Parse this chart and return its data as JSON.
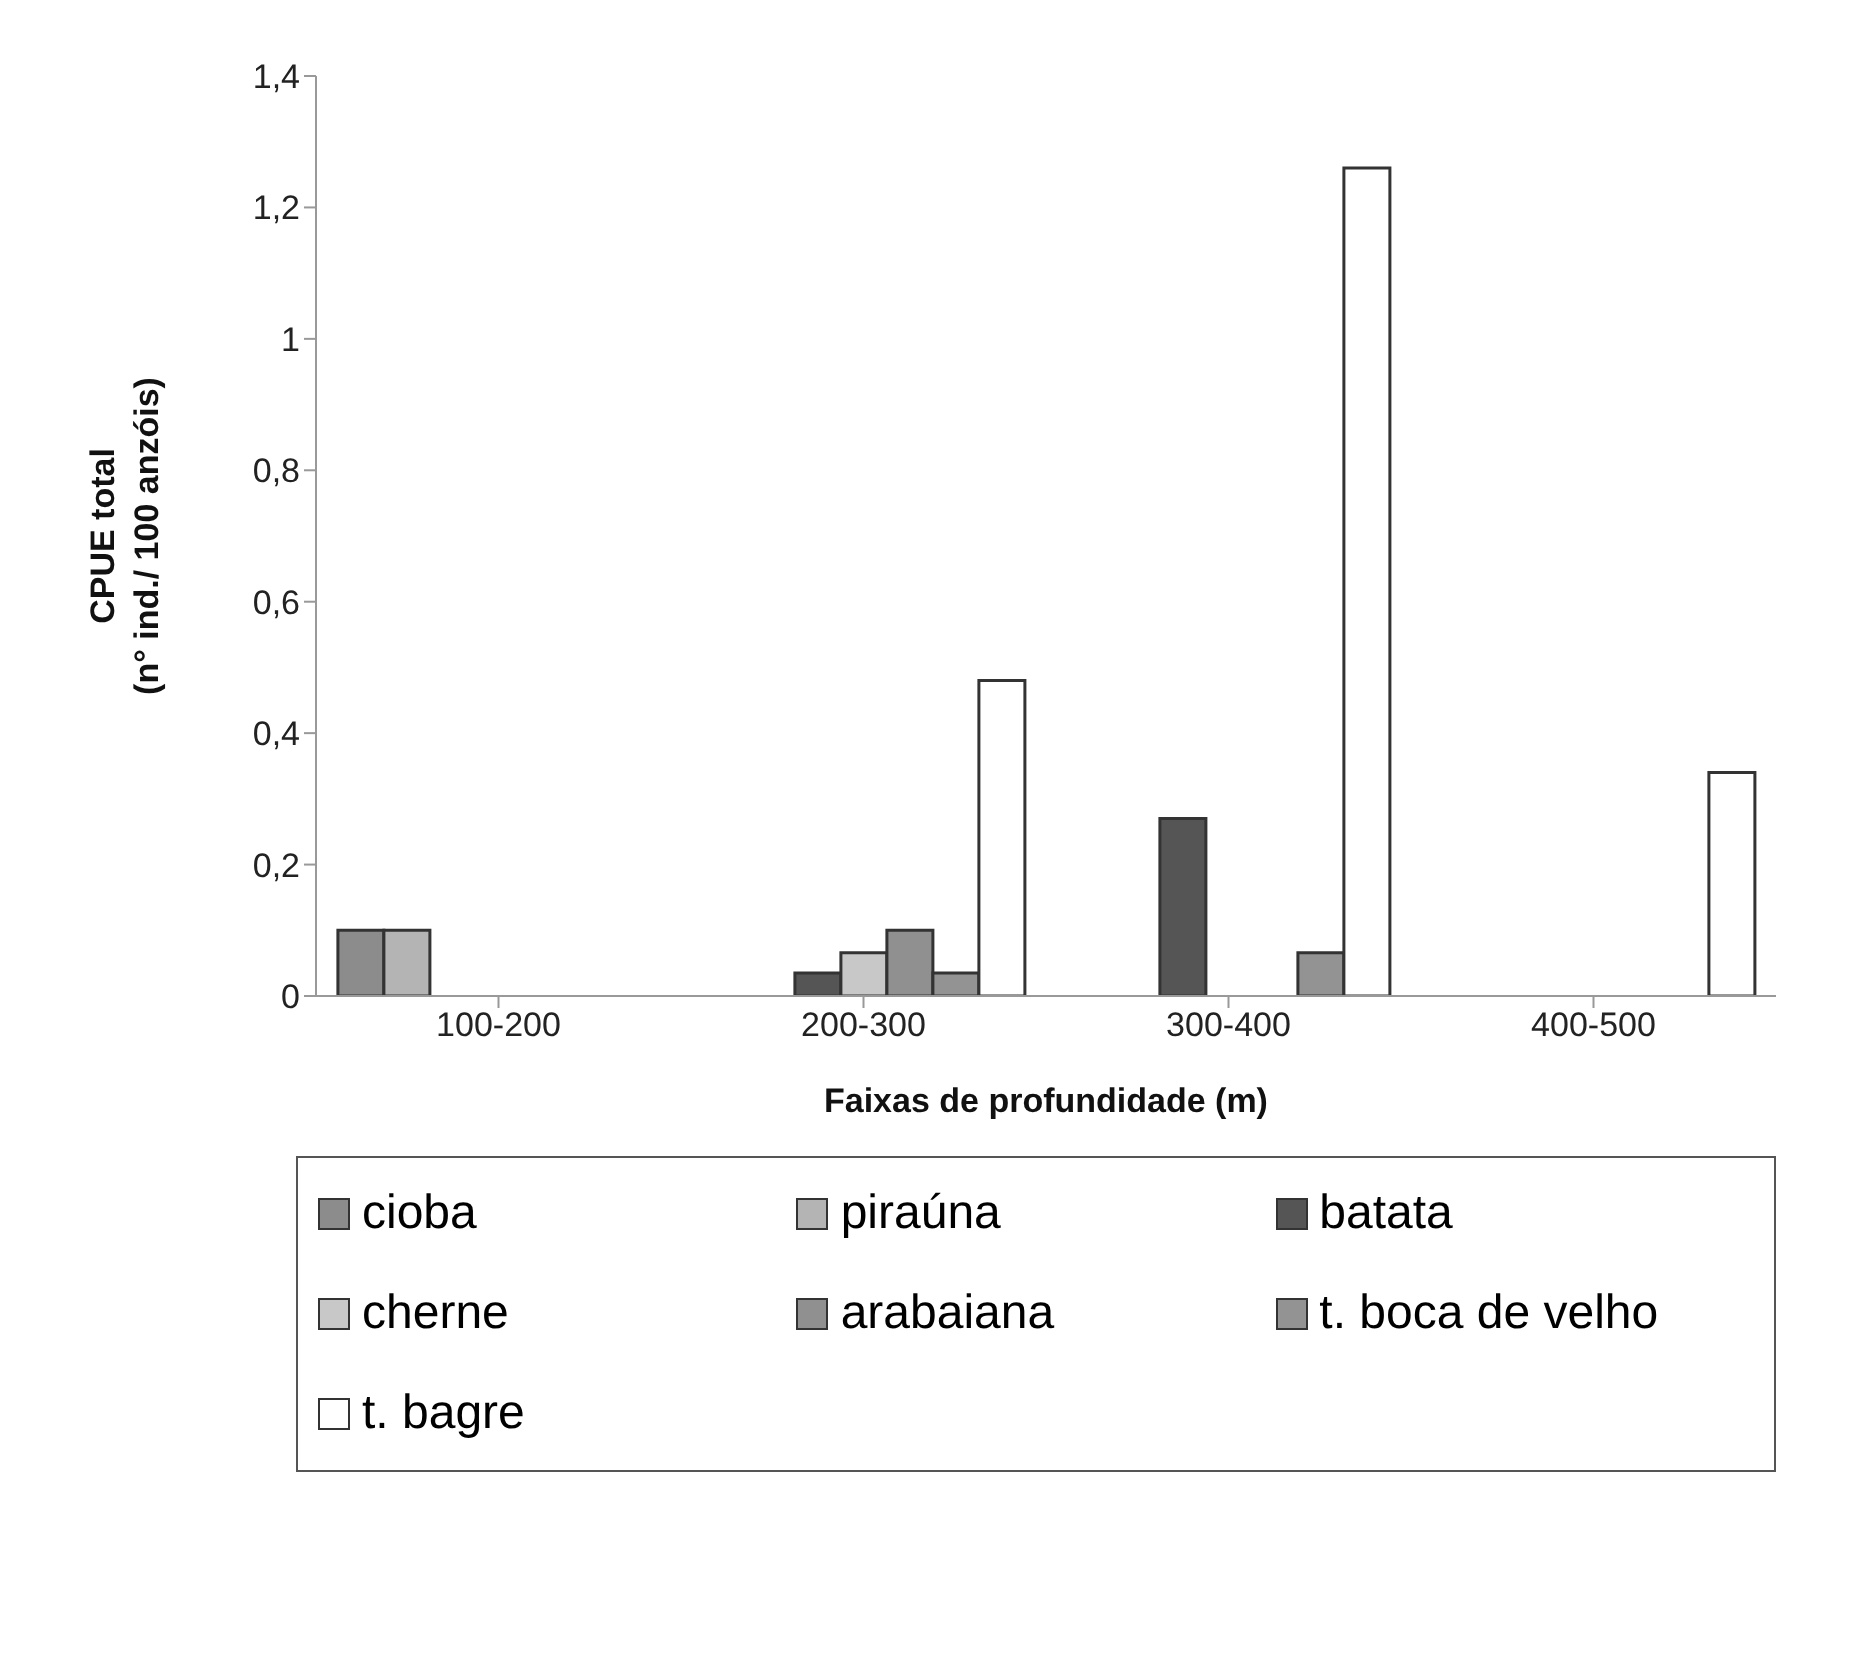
{
  "chart_data": {
    "type": "bar",
    "xlabel": "Faixas de profundidade (m)",
    "ylabel": "CPUE total\n(n° ind./ 100 anzóis)",
    "categories": [
      "100-200",
      "200-300",
      "300-400",
      "400-500"
    ],
    "series": [
      {
        "name": "cioba",
        "color": "#8c8c8c",
        "values": [
          0.1,
          null,
          null,
          null
        ]
      },
      {
        "name": "piraúna",
        "color": "#b4b4b4",
        "values": [
          0.1,
          null,
          null,
          null
        ]
      },
      {
        "name": "batata",
        "color": "#555555",
        "values": [
          null,
          0.035,
          0.27,
          null
        ]
      },
      {
        "name": "cherne",
        "color": "#c8c8c8",
        "values": [
          null,
          0.066,
          null,
          null
        ]
      },
      {
        "name": "arabaiana",
        "color": "#909090",
        "values": [
          null,
          0.1,
          null,
          null
        ]
      },
      {
        "name": "t. boca de velho",
        "color": "#939393",
        "values": [
          null,
          0.035,
          0.066,
          null
        ]
      },
      {
        "name": "t. bagre",
        "color": "#ffffff",
        "values": [
          null,
          0.48,
          1.26,
          0.34
        ]
      }
    ],
    "ylim": [
      0,
      1.4
    ],
    "yticks": [
      0,
      {
        "value": 0.2,
        "label": "0,2"
      },
      {
        "value": 0.4,
        "label": "0,4"
      },
      {
        "value": 0.6,
        "label": "0,6"
      },
      {
        "value": 0.8,
        "label": "0,8"
      },
      1,
      {
        "value": 1.2,
        "label": "1,2"
      },
      {
        "value": 1.4,
        "label": "1,4"
      }
    ],
    "grid": false,
    "legend": "bottom"
  }
}
